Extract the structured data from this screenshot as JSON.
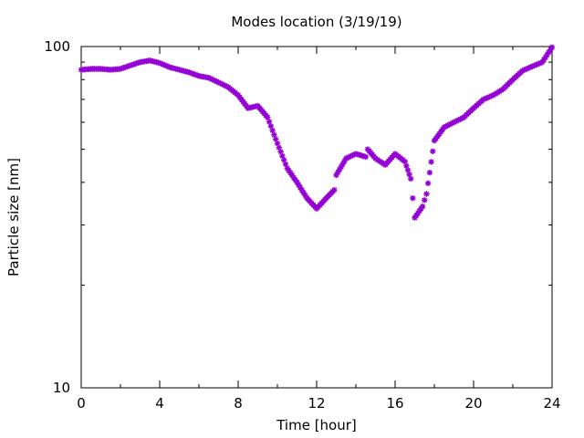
{
  "chart_data": {
    "type": "scatter",
    "title": "Modes location (3/19/19)",
    "xlabel": "Time [hour]",
    "ylabel": "Particle size [nm]",
    "xlim": [
      0,
      24
    ],
    "ylim": [
      10,
      100
    ],
    "yscale": "log",
    "x_ticks": [
      0,
      4,
      8,
      12,
      16,
      20,
      24
    ],
    "x_tick_labels": [
      "0",
      "4",
      "8",
      "12",
      "16",
      "20",
      "24"
    ],
    "y_ticks": [
      10,
      100
    ],
    "y_tick_labels": [
      "10",
      "100"
    ],
    "grid": false,
    "legend": false,
    "marker": "asterisk",
    "series_color": "#9400d3",
    "points": [
      [
        0.0,
        85.5
      ],
      [
        0.5,
        86.0
      ],
      [
        1.0,
        86.0
      ],
      [
        1.5,
        85.5
      ],
      [
        2.0,
        86.0
      ],
      [
        2.5,
        88.0
      ],
      [
        3.0,
        90.0
      ],
      [
        3.5,
        91.0
      ],
      [
        4.0,
        89.5
      ],
      [
        4.5,
        87.0
      ],
      [
        5.0,
        85.5
      ],
      [
        5.5,
        84.0
      ],
      [
        6.0,
        82.0
      ],
      [
        6.5,
        81.0
      ],
      [
        7.0,
        78.5
      ],
      [
        7.5,
        76.0
      ],
      [
        8.0,
        72.0
      ],
      [
        8.5,
        66.0
      ],
      [
        9.0,
        67.0
      ],
      [
        9.5,
        62.0
      ],
      [
        10.0,
        52.0
      ],
      [
        10.5,
        44.0
      ],
      [
        11.0,
        40.0
      ],
      [
        11.5,
        36.0
      ],
      [
        12.0,
        33.5
      ],
      [
        12.5,
        36.0
      ],
      [
        12.9,
        38.0
      ],
      [
        13.0,
        42.0
      ],
      [
        13.5,
        47.0
      ],
      [
        14.0,
        48.5
      ],
      [
        14.5,
        47.5
      ],
      [
        14.6,
        50.0
      ],
      [
        15.0,
        47.0
      ],
      [
        15.5,
        45.0
      ],
      [
        16.0,
        48.5
      ],
      [
        16.5,
        46.0
      ],
      [
        16.8,
        41.0
      ],
      [
        17.0,
        31.5
      ],
      [
        17.4,
        34.0
      ],
      [
        17.6,
        37.0
      ],
      [
        18.0,
        53.0
      ],
      [
        18.5,
        58.0
      ],
      [
        19.0,
        60.0
      ],
      [
        19.5,
        62.0
      ],
      [
        20.0,
        66.0
      ],
      [
        20.5,
        70.0
      ],
      [
        21.0,
        72.0
      ],
      [
        21.5,
        75.0
      ],
      [
        22.0,
        80.0
      ],
      [
        22.5,
        85.0
      ],
      [
        23.0,
        87.5
      ],
      [
        23.5,
        90.0
      ],
      [
        24.0,
        99.5
      ]
    ]
  }
}
